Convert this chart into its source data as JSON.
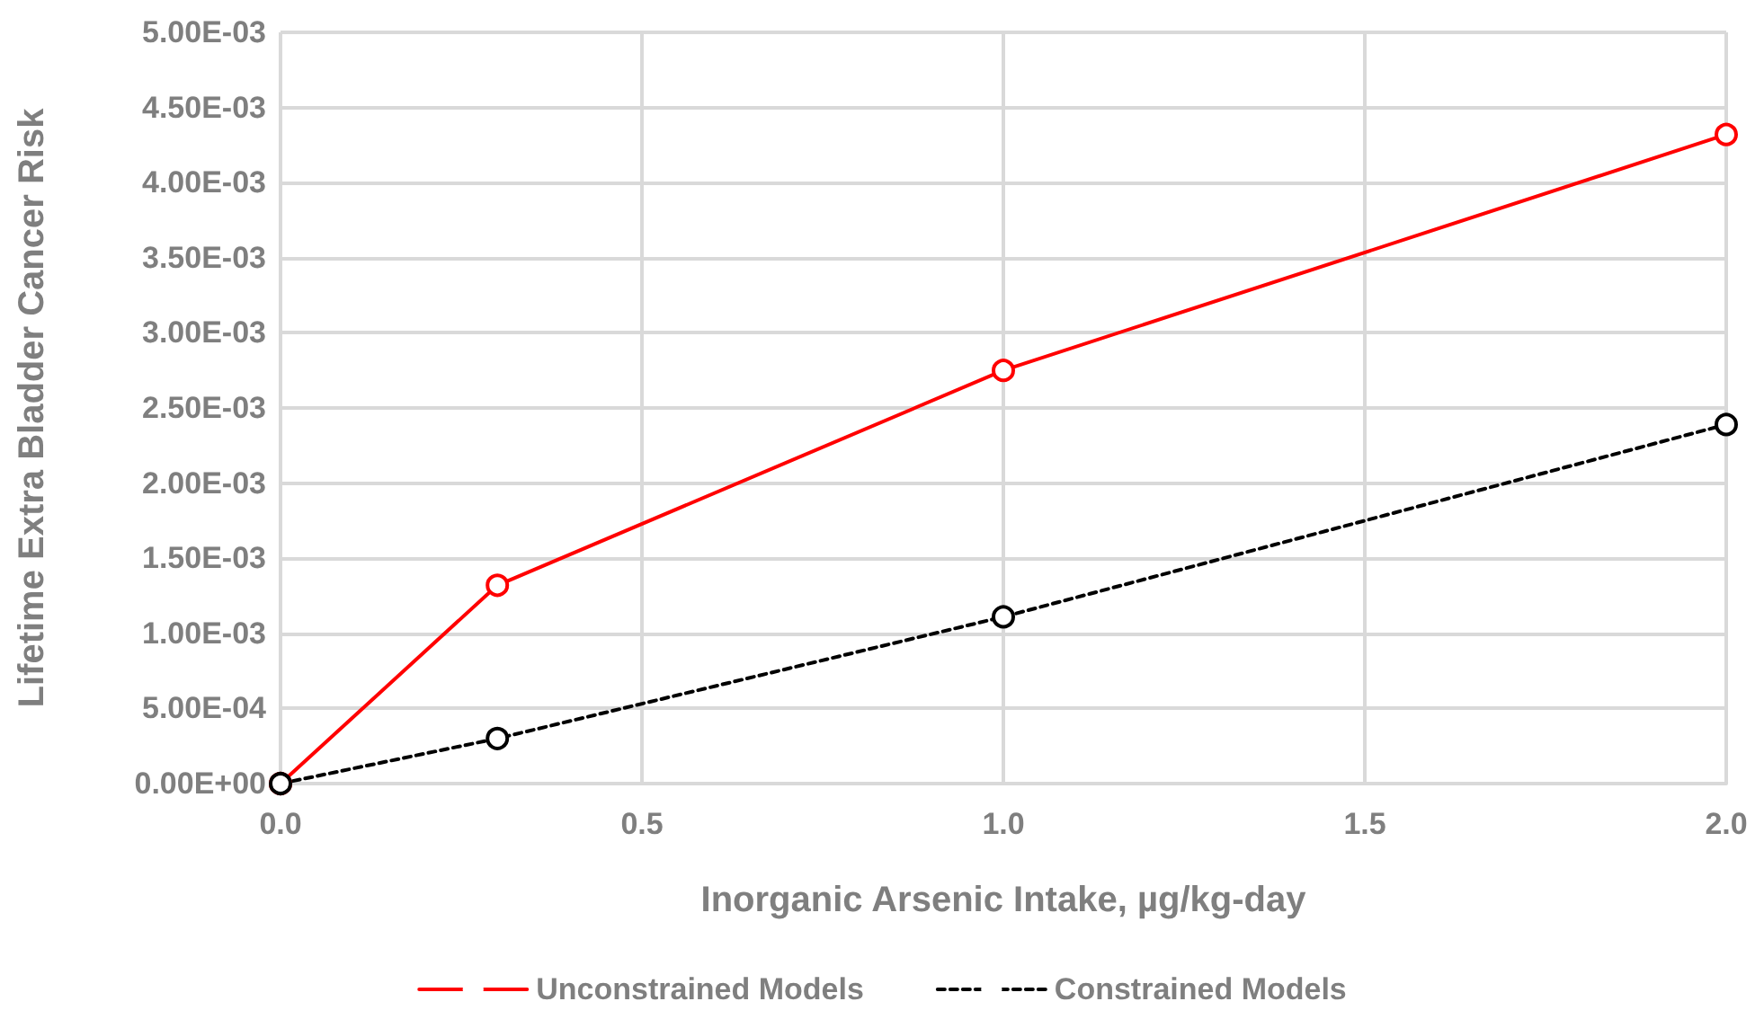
{
  "chart_data": {
    "type": "line",
    "xlabel": "Inorganic Arsenic Intake, µg/kg-day",
    "ylabel": "Lifetime Extra Bladder Cancer Risk",
    "x": [
      0,
      0.3,
      1,
      2
    ],
    "series": [
      {
        "name": "Unconstrained Models",
        "color": "#ff0000",
        "values": [
          0,
          0.00132,
          0.00275,
          0.00432
        ],
        "line_style": "solid"
      },
      {
        "name": "Constrained Models",
        "color": "#000000",
        "values": [
          0,
          0.0003,
          0.00111,
          0.00239
        ],
        "line_style": "dashed"
      }
    ],
    "xlim": [
      0,
      2
    ],
    "xticks": [
      {
        "value": 0,
        "label": "0.0"
      },
      {
        "value": 0.5,
        "label": "0.5"
      },
      {
        "value": 1,
        "label": "1.0"
      },
      {
        "value": 1.5,
        "label": "1.5"
      },
      {
        "value": 2,
        "label": "2.0"
      }
    ],
    "ylim": [
      0,
      0.005
    ],
    "yticks": [
      {
        "value": 0,
        "label": "0.00E+00"
      },
      {
        "value": 0.0005,
        "label": "5.00E-04"
      },
      {
        "value": 0.001,
        "label": "1.00E-03"
      },
      {
        "value": 0.0015,
        "label": "1.50E-03"
      },
      {
        "value": 0.002,
        "label": "2.00E-03"
      },
      {
        "value": 0.0025,
        "label": "2.50E-03"
      },
      {
        "value": 0.003,
        "label": "3.00E-03"
      },
      {
        "value": 0.0035,
        "label": "3.50E-03"
      },
      {
        "value": 0.004,
        "label": "4.00E-03"
      },
      {
        "value": 0.0045,
        "label": "4.50E-03"
      },
      {
        "value": 0.005,
        "label": "5.00E-03"
      }
    ],
    "grid": true,
    "legend": "bottom",
    "marker": "circle"
  }
}
